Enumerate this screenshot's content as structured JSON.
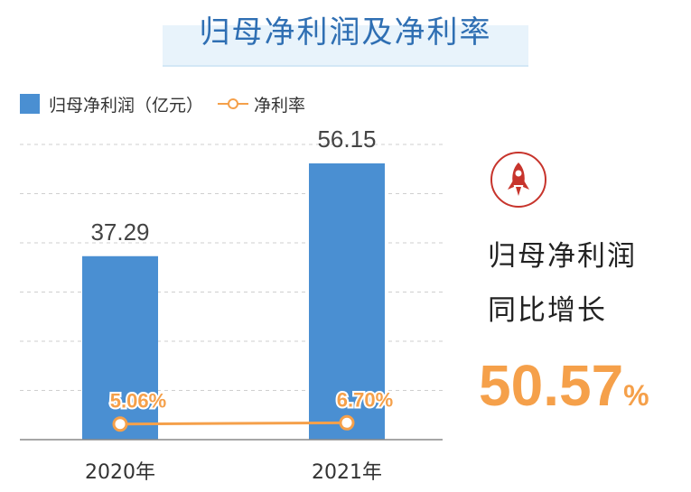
{
  "title": "归母净利润及净利率",
  "legend": {
    "bar_label": "归母净利润（亿元）",
    "line_label": "净利率"
  },
  "side": {
    "line1": "归母净利润",
    "line2": "同比增长",
    "growth_value": "50.57",
    "growth_unit": "%"
  },
  "icons": {
    "badge": "rocket-icon"
  },
  "colors": {
    "bar": "#4a8fd2",
    "line": "#f5a04a",
    "title": "#2f6fb3",
    "badge": "#c7342c"
  },
  "chart_data": {
    "type": "bar",
    "categories": [
      "2020年",
      "2021年"
    ],
    "series": [
      {
        "name": "归母净利润（亿元）",
        "type": "bar",
        "values": [
          37.29,
          56.15
        ],
        "labels": [
          "37.29",
          "56.15"
        ]
      },
      {
        "name": "净利率",
        "type": "line",
        "values": [
          5.06,
          6.7
        ],
        "labels": [
          "5.06%",
          "6.70%"
        ]
      }
    ],
    "ylim": [
      0,
      60
    ],
    "grid": true,
    "legend_position": "top-left"
  }
}
